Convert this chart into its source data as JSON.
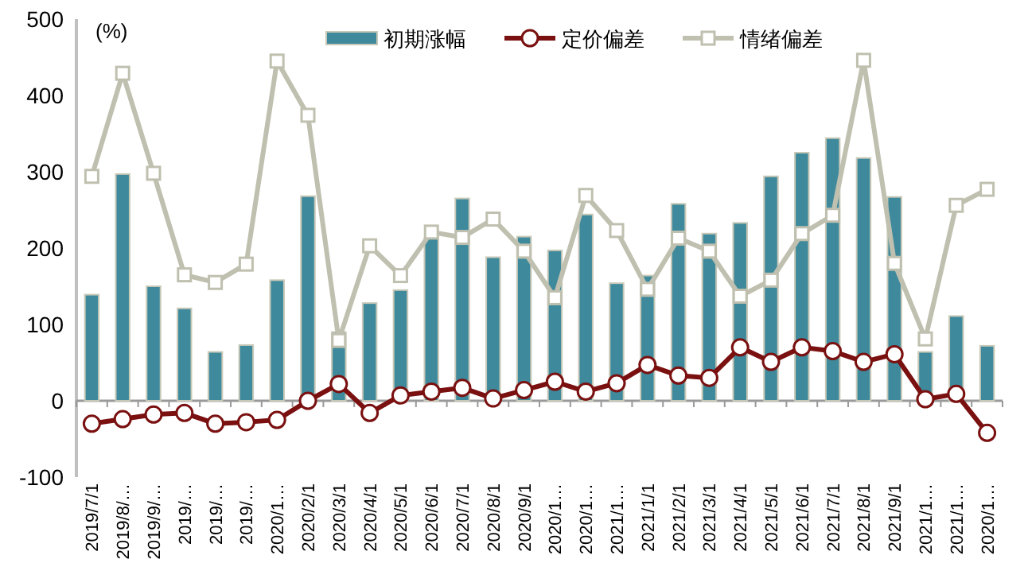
{
  "chart_data": {
    "type": "bar",
    "ylabel": "(%)",
    "categories": [
      "2019/7/1",
      "2019/8/…",
      "2019/9/…",
      "2019/…",
      "2019/…",
      "2019/…",
      "2020/1…",
      "2020/2/1",
      "2020/3/1",
      "2020/4/1",
      "2020/5/1",
      "2020/6/1",
      "2020/7/1",
      "2020/8/1",
      "2020/9/1",
      "2020/1…",
      "2020/1…",
      "2021/1…",
      "2021/1/1",
      "2021/2/1",
      "2021/3/1",
      "2021/4/1",
      "2021/5/1",
      "2021/6/1",
      "2021/7/1",
      "2021/8/1",
      "2021/9/1",
      "2021/1…",
      "2021/1…",
      "2020/1…"
    ],
    "series": [
      {
        "name": "初期涨幅",
        "type": "bar",
        "color": "#3e8a9c",
        "values": [
          139,
          297,
          150,
          121,
          64,
          73,
          158,
          268,
          90,
          128,
          145,
          213,
          265,
          188,
          215,
          197,
          244,
          154,
          164,
          258,
          219,
          233,
          294,
          325,
          344,
          318,
          267,
          64,
          111,
          72
        ]
      },
      {
        "name": "定价偏差",
        "type": "line",
        "color": "#7a1010",
        "marker": "circle",
        "values": [
          -30,
          -24,
          -18,
          -16,
          -30,
          -28,
          -25,
          0,
          22,
          -16,
          7,
          12,
          17,
          3,
          14,
          25,
          12,
          23,
          47,
          33,
          30,
          70,
          51,
          70,
          65,
          51,
          61,
          2,
          9,
          -42
        ]
      },
      {
        "name": "情绪偏差",
        "type": "line",
        "color": "#c0c0b0",
        "marker": "square",
        "values": [
          294,
          429,
          298,
          165,
          155,
          179,
          445,
          374,
          79,
          203,
          164,
          221,
          214,
          238,
          196,
          135,
          269,
          223,
          146,
          213,
          196,
          137,
          158,
          219,
          243,
          446,
          180,
          81,
          256,
          277
        ]
      }
    ],
    "ylim": [
      -100,
      500
    ],
    "yticks": [
      -100,
      0,
      100,
      200,
      300,
      400,
      500
    ],
    "legend": "top right"
  }
}
